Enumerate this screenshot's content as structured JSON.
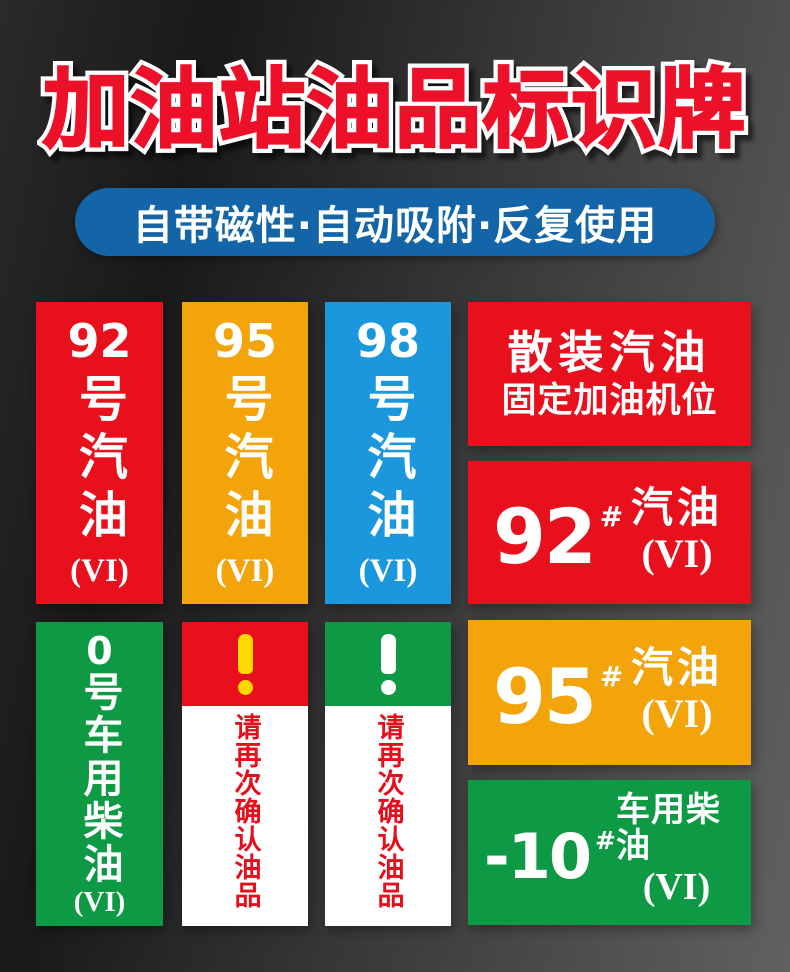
{
  "header": {
    "title": "加油站油品标识牌",
    "banner": "自带磁性·自动吸附·反复使用"
  },
  "colors": {
    "title": "#ec1029",
    "title_outline": "#ffffff",
    "banner": "#1465a8",
    "sign_red": "#e8101c",
    "sign_orange": "#f2a40a",
    "sign_blue": "#1b97dd",
    "sign_green": "#0e9a45",
    "warning_text_red": "#e60e1a",
    "mark_yellow": "#ffd800",
    "text_white": "#ffffff",
    "background_dark": "#1a1a1a",
    "background_light": "#616161"
  },
  "vertical_signs": [
    {
      "label": "92号汽油(VI)",
      "number": "92",
      "chars": "号汽油",
      "grade": "(VI)",
      "color": "#e8101c"
    },
    {
      "label": "95号汽油(VI)",
      "number": "95",
      "chars": "号汽油",
      "grade": "(VI)",
      "color": "#f2a40a"
    },
    {
      "label": "98号汽油(VI)",
      "number": "98",
      "chars": "号汽油",
      "grade": "(VI)",
      "color": "#1b97dd"
    },
    {
      "label": "0号车用柴油(VI)",
      "number": "0",
      "chars": "号车用柴油",
      "grade": "(VI)",
      "color": "#0e9a45"
    }
  ],
  "bulk_sign": {
    "line1": "散装汽油",
    "line2": "固定加油机位",
    "color": "#e8101c"
  },
  "number_signs": [
    {
      "label": "92#汽油(VI)",
      "number": "92",
      "hash": "#",
      "product": "汽油",
      "grade": "(VI)",
      "color": "#e8101c"
    },
    {
      "label": "95#汽油(VI)",
      "number": "95",
      "hash": "#",
      "product": "汽油",
      "grade": "(VI)",
      "color": "#f2a40a"
    },
    {
      "label": "-10#车用柴油(VI)",
      "number": "-10",
      "hash": "#",
      "product": "车用柴油",
      "grade": "(VI)",
      "color": "#0e9a45"
    }
  ],
  "warning_signs": [
    {
      "label": "请再次确认油品(红)",
      "mark": "!",
      "mark_color": "#ffd800",
      "header_color": "#e8101c",
      "text": "请再次确认油品",
      "text_color": "#e60e1a"
    },
    {
      "label": "请再次确认油品(绿)",
      "mark": "!",
      "mark_color": "#ffffff",
      "header_color": "#0e9a45",
      "text": "请再次确认油品",
      "text_color": "#e60e1a"
    }
  ]
}
